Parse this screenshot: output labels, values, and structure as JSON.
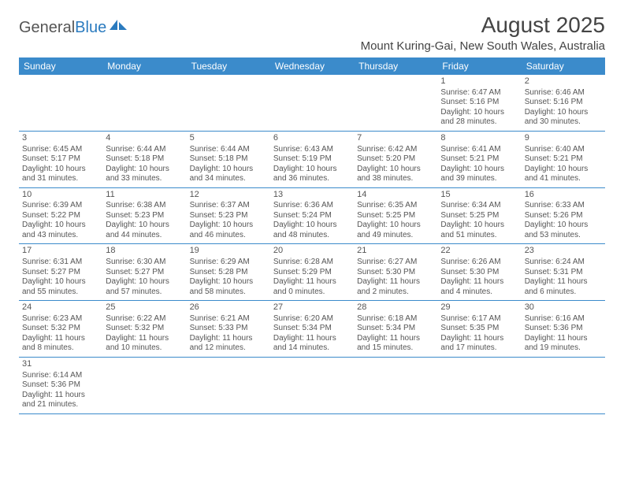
{
  "logo": {
    "text1": "General",
    "text2": "Blue"
  },
  "title": "August 2025",
  "location": "Mount Kuring-Gai, New South Wales, Australia",
  "header_bg": "#3b8bcb",
  "header_fg": "#ffffff",
  "border_color": "#3b8bcb",
  "text_color": "#555555",
  "weekdays": [
    "Sunday",
    "Monday",
    "Tuesday",
    "Wednesday",
    "Thursday",
    "Friday",
    "Saturday"
  ],
  "weeks": [
    [
      null,
      null,
      null,
      null,
      null,
      {
        "n": "1",
        "sunrise": "6:47 AM",
        "sunset": "5:16 PM",
        "daylight": "10 hours and 28 minutes."
      },
      {
        "n": "2",
        "sunrise": "6:46 AM",
        "sunset": "5:16 PM",
        "daylight": "10 hours and 30 minutes."
      }
    ],
    [
      {
        "n": "3",
        "sunrise": "6:45 AM",
        "sunset": "5:17 PM",
        "daylight": "10 hours and 31 minutes."
      },
      {
        "n": "4",
        "sunrise": "6:44 AM",
        "sunset": "5:18 PM",
        "daylight": "10 hours and 33 minutes."
      },
      {
        "n": "5",
        "sunrise": "6:44 AM",
        "sunset": "5:18 PM",
        "daylight": "10 hours and 34 minutes."
      },
      {
        "n": "6",
        "sunrise": "6:43 AM",
        "sunset": "5:19 PM",
        "daylight": "10 hours and 36 minutes."
      },
      {
        "n": "7",
        "sunrise": "6:42 AM",
        "sunset": "5:20 PM",
        "daylight": "10 hours and 38 minutes."
      },
      {
        "n": "8",
        "sunrise": "6:41 AM",
        "sunset": "5:21 PM",
        "daylight": "10 hours and 39 minutes."
      },
      {
        "n": "9",
        "sunrise": "6:40 AM",
        "sunset": "5:21 PM",
        "daylight": "10 hours and 41 minutes."
      }
    ],
    [
      {
        "n": "10",
        "sunrise": "6:39 AM",
        "sunset": "5:22 PM",
        "daylight": "10 hours and 43 minutes."
      },
      {
        "n": "11",
        "sunrise": "6:38 AM",
        "sunset": "5:23 PM",
        "daylight": "10 hours and 44 minutes."
      },
      {
        "n": "12",
        "sunrise": "6:37 AM",
        "sunset": "5:23 PM",
        "daylight": "10 hours and 46 minutes."
      },
      {
        "n": "13",
        "sunrise": "6:36 AM",
        "sunset": "5:24 PM",
        "daylight": "10 hours and 48 minutes."
      },
      {
        "n": "14",
        "sunrise": "6:35 AM",
        "sunset": "5:25 PM",
        "daylight": "10 hours and 49 minutes."
      },
      {
        "n": "15",
        "sunrise": "6:34 AM",
        "sunset": "5:25 PM",
        "daylight": "10 hours and 51 minutes."
      },
      {
        "n": "16",
        "sunrise": "6:33 AM",
        "sunset": "5:26 PM",
        "daylight": "10 hours and 53 minutes."
      }
    ],
    [
      {
        "n": "17",
        "sunrise": "6:31 AM",
        "sunset": "5:27 PM",
        "daylight": "10 hours and 55 minutes."
      },
      {
        "n": "18",
        "sunrise": "6:30 AM",
        "sunset": "5:27 PM",
        "daylight": "10 hours and 57 minutes."
      },
      {
        "n": "19",
        "sunrise": "6:29 AM",
        "sunset": "5:28 PM",
        "daylight": "10 hours and 58 minutes."
      },
      {
        "n": "20",
        "sunrise": "6:28 AM",
        "sunset": "5:29 PM",
        "daylight": "11 hours and 0 minutes."
      },
      {
        "n": "21",
        "sunrise": "6:27 AM",
        "sunset": "5:30 PM",
        "daylight": "11 hours and 2 minutes."
      },
      {
        "n": "22",
        "sunrise": "6:26 AM",
        "sunset": "5:30 PM",
        "daylight": "11 hours and 4 minutes."
      },
      {
        "n": "23",
        "sunrise": "6:24 AM",
        "sunset": "5:31 PM",
        "daylight": "11 hours and 6 minutes."
      }
    ],
    [
      {
        "n": "24",
        "sunrise": "6:23 AM",
        "sunset": "5:32 PM",
        "daylight": "11 hours and 8 minutes."
      },
      {
        "n": "25",
        "sunrise": "6:22 AM",
        "sunset": "5:32 PM",
        "daylight": "11 hours and 10 minutes."
      },
      {
        "n": "26",
        "sunrise": "6:21 AM",
        "sunset": "5:33 PM",
        "daylight": "11 hours and 12 minutes."
      },
      {
        "n": "27",
        "sunrise": "6:20 AM",
        "sunset": "5:34 PM",
        "daylight": "11 hours and 14 minutes."
      },
      {
        "n": "28",
        "sunrise": "6:18 AM",
        "sunset": "5:34 PM",
        "daylight": "11 hours and 15 minutes."
      },
      {
        "n": "29",
        "sunrise": "6:17 AM",
        "sunset": "5:35 PM",
        "daylight": "11 hours and 17 minutes."
      },
      {
        "n": "30",
        "sunrise": "6:16 AM",
        "sunset": "5:36 PM",
        "daylight": "11 hours and 19 minutes."
      }
    ],
    [
      {
        "n": "31",
        "sunrise": "6:14 AM",
        "sunset": "5:36 PM",
        "daylight": "11 hours and 21 minutes."
      },
      null,
      null,
      null,
      null,
      null,
      null
    ]
  ],
  "labels": {
    "sunrise": "Sunrise: ",
    "sunset": "Sunset: ",
    "daylight": "Daylight: "
  }
}
